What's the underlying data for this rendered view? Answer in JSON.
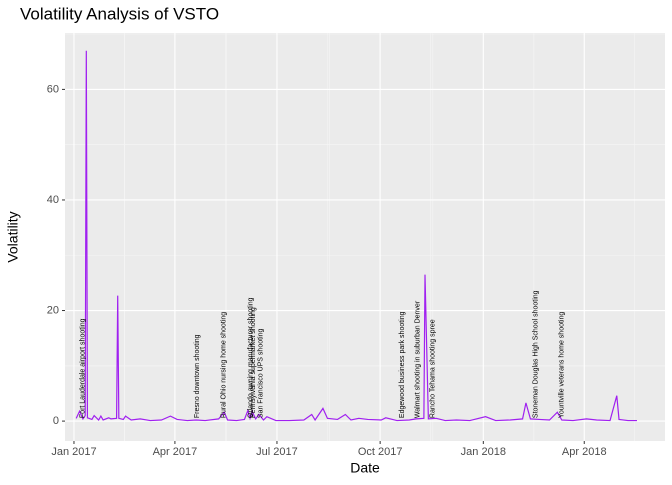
{
  "chart_data": {
    "type": "line",
    "title": "Volatility Analysis of VSTO",
    "x_label": "Date",
    "y_label": "Volatility",
    "color": "#A020F0",
    "grid": true,
    "xlim": [
      "2016-12-24",
      "2018-06-12"
    ],
    "xticks": [
      {
        "value": "2017-01-01",
        "label": "Jan 2017"
      },
      {
        "value": "2017-04-01",
        "label": "Apr 2017"
      },
      {
        "value": "2017-07-01",
        "label": "Jul 2017"
      },
      {
        "value": "2017-10-01",
        "label": "Oct 2017"
      },
      {
        "value": "2018-01-01",
        "label": "Jan 2018"
      },
      {
        "value": "2018-04-01",
        "label": "Apr 2018"
      }
    ],
    "ylim": [
      -3.6,
      70.2
    ],
    "yticks": [
      0,
      20,
      40,
      60
    ],
    "x": [
      "2017-01-03",
      "2017-01-06",
      "2017-01-09",
      "2017-01-11",
      "2017-01-12",
      "2017-01-13",
      "2017-01-17",
      "2017-01-19",
      "2017-01-23",
      "2017-01-25",
      "2017-01-27",
      "2017-02-01",
      "2017-02-03",
      "2017-02-08",
      "2017-02-09",
      "2017-02-10",
      "2017-02-14",
      "2017-02-16",
      "2017-02-21",
      "2017-03-01",
      "2017-03-10",
      "2017-03-20",
      "2017-03-28",
      "2017-04-03",
      "2017-04-12",
      "2017-04-20",
      "2017-04-28",
      "2017-05-10",
      "2017-05-15",
      "2017-05-18",
      "2017-05-26",
      "2017-06-02",
      "2017-06-05",
      "2017-06-07",
      "2017-06-09",
      "2017-06-12",
      "2017-06-15",
      "2017-06-19",
      "2017-06-22",
      "2017-06-30",
      "2017-07-12",
      "2017-07-25",
      "2017-08-01",
      "2017-08-04",
      "2017-08-11",
      "2017-08-15",
      "2017-08-24",
      "2017-08-31",
      "2017-09-05",
      "2017-09-12",
      "2017-09-20",
      "2017-10-02",
      "2017-10-06",
      "2017-10-16",
      "2017-10-27",
      "2017-11-02",
      "2017-11-09",
      "2017-11-10",
      "2017-11-13",
      "2017-11-20",
      "2017-11-28",
      "2017-12-08",
      "2017-12-20",
      "2018-01-03",
      "2018-01-12",
      "2018-01-25",
      "2018-02-05",
      "2018-02-08",
      "2018-02-12",
      "2018-02-20",
      "2018-03-01",
      "2018-03-08",
      "2018-03-12",
      "2018-03-22",
      "2018-04-03",
      "2018-04-12",
      "2018-04-24",
      "2018-04-30",
      "2018-05-02",
      "2018-05-10",
      "2018-05-18"
    ],
    "values": [
      0.5,
      1.8,
      0.4,
      1.0,
      67.0,
      0.6,
      0.3,
      1.0,
      0.2,
      0.9,
      0.2,
      0.6,
      0.4,
      0.5,
      22.7,
      0.5,
      0.3,
      0.9,
      0.2,
      0.4,
      0.1,
      0.2,
      0.9,
      0.3,
      0.1,
      0.2,
      0.1,
      0.4,
      1.6,
      0.2,
      0.1,
      0.3,
      1.9,
      0.5,
      1.7,
      0.4,
      1.2,
      0.2,
      0.8,
      0.1,
      0.1,
      0.2,
      1.2,
      0.2,
      2.3,
      0.5,
      0.3,
      1.2,
      0.2,
      0.5,
      0.3,
      0.2,
      0.6,
      0.1,
      0.2,
      0.4,
      0.5,
      26.5,
      0.4,
      0.5,
      0.1,
      0.2,
      0.1,
      0.8,
      0.1,
      0.2,
      0.4,
      3.3,
      0.4,
      0.3,
      0.2,
      1.6,
      0.2,
      0.1,
      0.4,
      0.2,
      0.1,
      4.6,
      0.3,
      0.1,
      0.1
    ],
    "annotations": [
      {
        "x": "2017-01-06",
        "label": "Fort Lauderdale airport shooting"
      },
      {
        "x": "2017-04-18",
        "label": "Fresno downtown shooting"
      },
      {
        "x": "2017-05-12",
        "label": "Rural Ohio nursing home shooting"
      },
      {
        "x": "2017-06-05",
        "label": "Orlando awning manufacturer shooting"
      },
      {
        "x": "2017-06-07",
        "label": "Pennsylvania supermarket shooting"
      },
      {
        "x": "2017-06-14",
        "label": "San Francisco UPS shooting"
      },
      {
        "x": "2017-10-18",
        "label": "Edgewood business park shooting"
      },
      {
        "x": "2017-11-01",
        "label": "Walmart shooting in suburban Denver"
      },
      {
        "x": "2017-11-14",
        "label": "Rancho Tehama shooting spree"
      },
      {
        "x": "2018-02-14",
        "label": "Stoneman Douglas High School shooting"
      },
      {
        "x": "2018-03-09",
        "label": "Yountville veterans home shooting"
      }
    ]
  }
}
